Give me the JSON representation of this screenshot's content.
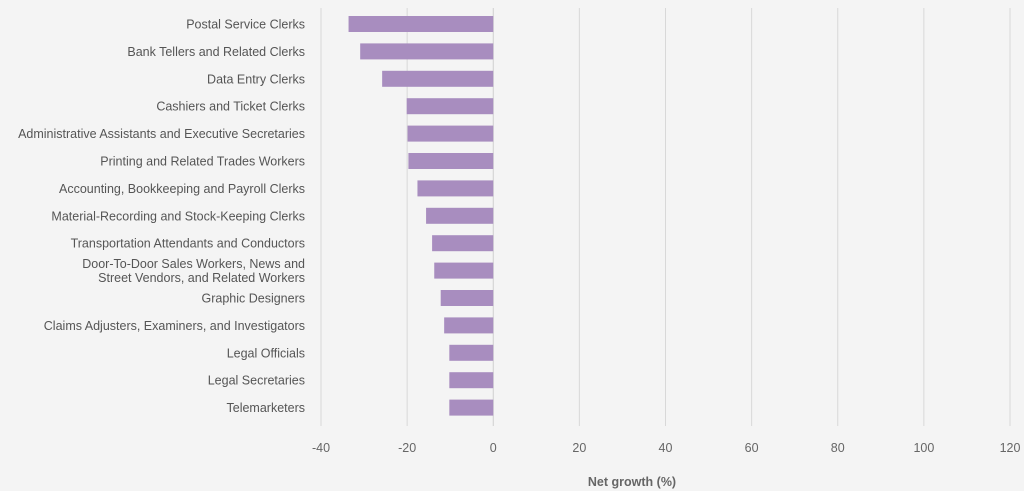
{
  "chart_data": {
    "type": "bar",
    "orientation": "horizontal",
    "categories": [
      "Postal Service Clerks",
      "Bank Tellers and Related Clerks",
      "Data Entry Clerks",
      "Cashiers and Ticket Clerks",
      "Administrative Assistants and Executive Secretaries",
      "Printing and Related Trades Workers",
      "Accounting, Bookkeeping and Payroll Clerks",
      "Material-Recording and Stock-Keeping Clerks",
      "Transportation Attendants and Conductors",
      "Door-To-Door Sales Workers, News and Street Vendors, and Related Workers",
      "Graphic Designers",
      "Claims Adjusters, Examiners, and Investigators",
      "Legal Officials",
      "Legal Secretaries",
      "Telemarketers"
    ],
    "category_lines": [
      [
        "Postal Service Clerks"
      ],
      [
        "Bank Tellers and Related Clerks"
      ],
      [
        "Data Entry Clerks"
      ],
      [
        "Cashiers and Ticket Clerks"
      ],
      [
        "Administrative Assistants and Executive Secretaries"
      ],
      [
        "Printing and Related Trades Workers"
      ],
      [
        "Accounting, Bookkeeping and Payroll Clerks"
      ],
      [
        "Material-Recording and Stock-Keeping Clerks"
      ],
      [
        "Transportation Attendants and Conductors"
      ],
      [
        "Door-To-Door Sales Workers, News and",
        "Street Vendors, and Related Workers"
      ],
      [
        "Graphic Designers"
      ],
      [
        "Claims Adjusters, Examiners, and Investigators"
      ],
      [
        "Legal Officials"
      ],
      [
        "Legal Secretaries"
      ],
      [
        "Telemarketers"
      ]
    ],
    "values": [
      -33.6,
      -30.9,
      -25.8,
      -20.1,
      -19.9,
      -19.7,
      -17.6,
      -15.6,
      -14.2,
      -13.7,
      -12.2,
      -11.4,
      -10.2,
      -10.2,
      -10.2
    ],
    "xlabel": "Net growth (%)",
    "ylabel": "",
    "xlim": [
      -40,
      120
    ],
    "xticks": [
      -40,
      -20,
      0,
      20,
      40,
      60,
      80,
      100,
      120
    ],
    "grid": "vertical",
    "colors": {
      "bar": "#a88dbf",
      "zero_line": "#cfcfcf",
      "gridline": "#d8d8d8",
      "background": "#f4f4f4"
    }
  }
}
